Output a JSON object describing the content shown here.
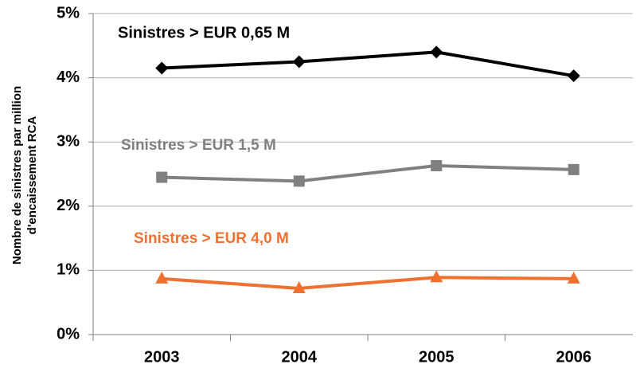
{
  "chart_data": {
    "type": "line",
    "ylabel": [
      "Nombre de sinistres  par million",
      "d'encaissement  RCA"
    ],
    "categories": [
      "2003",
      "2004",
      "2005",
      "2006"
    ],
    "series": [
      {
        "name": "Sinistres > EUR 0,65 M",
        "color": "#000000",
        "marker": "diamond",
        "values": [
          4.15,
          4.25,
          4.4,
          4.03
        ]
      },
      {
        "name": "Sinistres > EUR 1,5 M",
        "color": "#808080",
        "marker": "square",
        "values": [
          2.45,
          2.39,
          2.63,
          2.57
        ]
      },
      {
        "name": "Sinistres > EUR 4,0 M",
        "color": "#f07030",
        "marker": "triangle",
        "values": [
          0.87,
          0.72,
          0.89,
          0.87
        ]
      }
    ],
    "ylim": [
      0,
      5
    ],
    "yticks": [
      {
        "value": 0,
        "label": "0%"
      },
      {
        "value": 1,
        "label": "1%"
      },
      {
        "value": 2,
        "label": "2%"
      },
      {
        "value": 3,
        "label": "3%"
      },
      {
        "value": 4,
        "label": "4%"
      },
      {
        "value": 5,
        "label": "5%"
      }
    ],
    "grid": true
  }
}
